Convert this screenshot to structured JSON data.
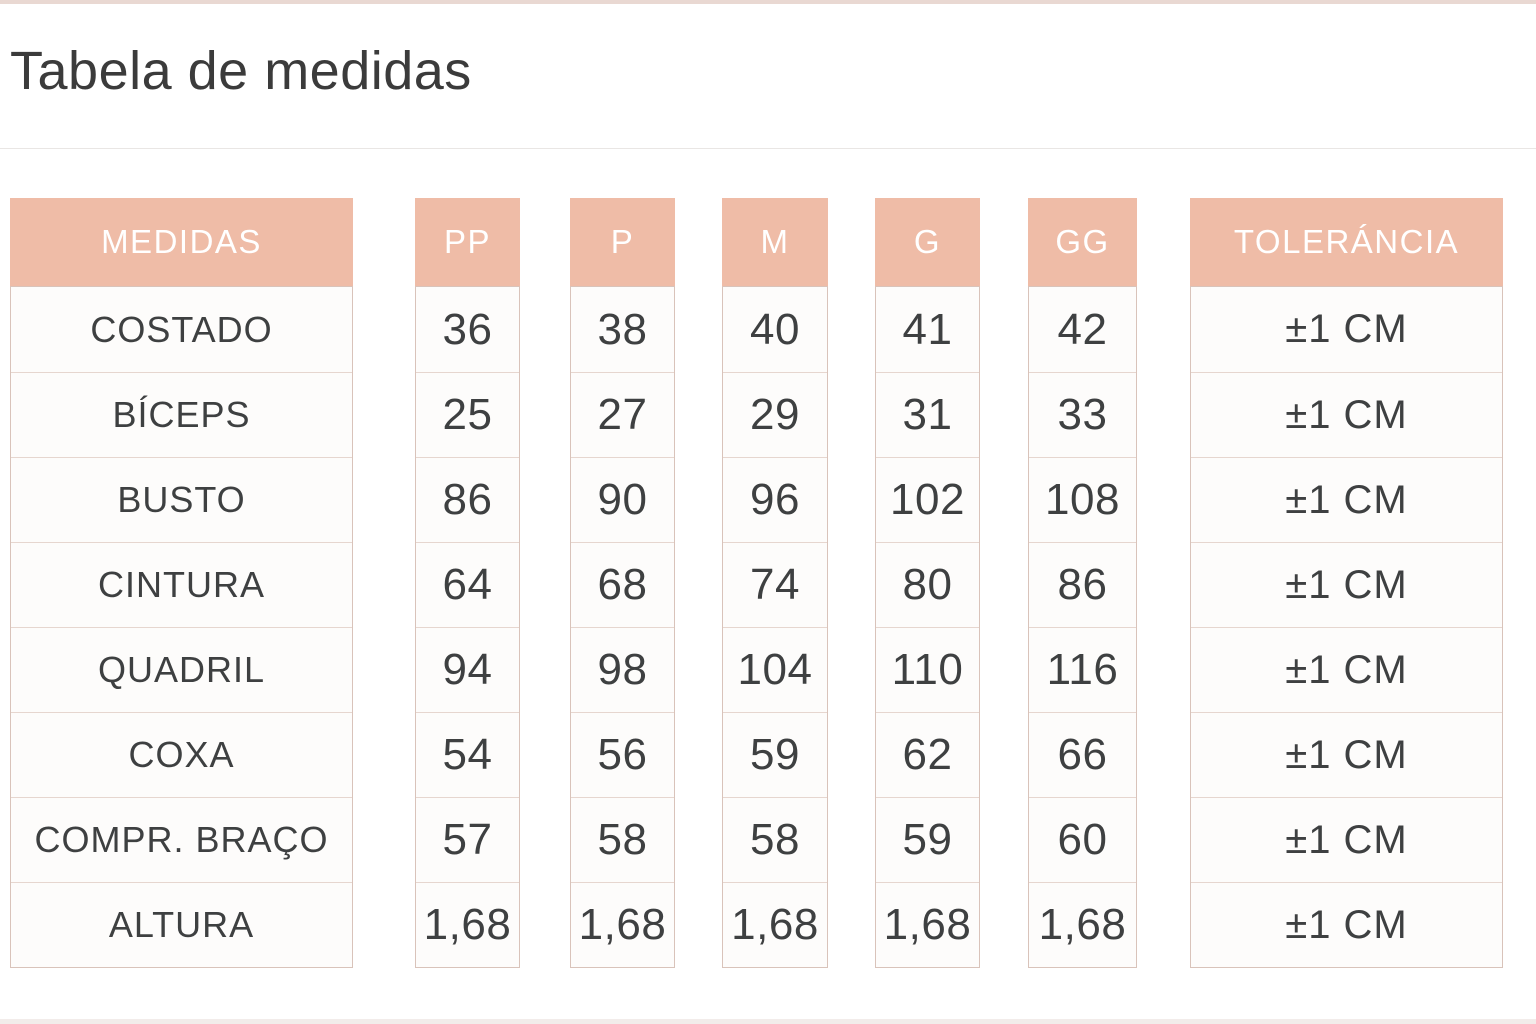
{
  "page": {
    "title": "Tabela de medidas"
  },
  "colors": {
    "header_bg": "#efbca7",
    "header_text": "#ffffff",
    "cell_bg": "#fdfcfb",
    "cell_border": "#d9c3ba",
    "row_divider": "#e6d6cf",
    "body_text": "#3e4041",
    "title_text": "#3b3b3b",
    "top_strip": "#e9d8d2",
    "page_bg": "#ffffff"
  },
  "table": {
    "columns": [
      {
        "key": "medidas",
        "label": "MEDIDAS"
      },
      {
        "key": "pp",
        "label": "PP"
      },
      {
        "key": "p",
        "label": "P"
      },
      {
        "key": "m",
        "label": "M"
      },
      {
        "key": "g",
        "label": "G"
      },
      {
        "key": "gg",
        "label": "GG"
      },
      {
        "key": "tolerancia",
        "label": "TOLERÁNCIA"
      }
    ],
    "rows": [
      {
        "label": "COSTADO",
        "values": [
          "36",
          "38",
          "40",
          "41",
          "42",
          "±1 CM"
        ]
      },
      {
        "label": "BÍCEPS",
        "values": [
          "25",
          "27",
          "29",
          "31",
          "33",
          "±1 CM"
        ]
      },
      {
        "label": "BUSTO",
        "values": [
          "86",
          "90",
          "96",
          "102",
          "108",
          "±1 CM"
        ]
      },
      {
        "label": "CINTURA",
        "values": [
          "64",
          "68",
          "74",
          "80",
          "86",
          "±1 CM"
        ]
      },
      {
        "label": "QUADRIL",
        "values": [
          "94",
          "98",
          "104",
          "110",
          "116",
          "±1 CM"
        ]
      },
      {
        "label": "COXA",
        "values": [
          "54",
          "56",
          "59",
          "62",
          "66",
          "±1 CM"
        ]
      },
      {
        "label": "COMPR. BRAÇO",
        "values": [
          "57",
          "58",
          "58",
          "59",
          "60",
          "±1 CM"
        ]
      },
      {
        "label": "ALTURA",
        "values": [
          "1,68",
          "1,68",
          "1,68",
          "1,68",
          "1,68",
          "±1 CM"
        ]
      }
    ]
  }
}
